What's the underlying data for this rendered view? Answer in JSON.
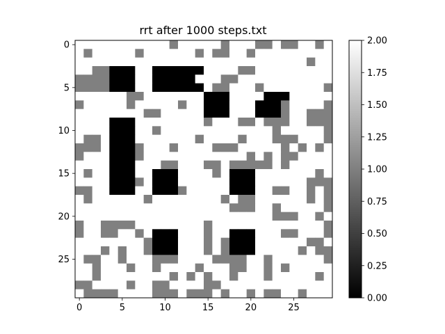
{
  "chart_data": {
    "type": "heatmap",
    "title": "rrt after 1000 steps.txt",
    "xlabel": "",
    "ylabel": "",
    "colormap": "gray",
    "color_range": [
      0,
      2
    ],
    "rows": 30,
    "cols": 30,
    "x_ticks": [
      0,
      5,
      10,
      15,
      20,
      25
    ],
    "y_ticks": [
      0,
      5,
      10,
      15,
      20,
      25
    ],
    "colorbar_ticks": [
      "0.00",
      "0.25",
      "0.50",
      "0.75",
      "1.00",
      "1.25",
      "1.50",
      "1.75",
      "2.00"
    ],
    "grid": false,
    "values": [
      [
        2,
        2,
        2,
        2,
        2,
        2,
        2,
        2,
        2,
        2,
        2,
        1,
        2,
        2,
        2,
        2,
        2,
        1,
        2,
        2,
        2,
        1,
        1,
        2,
        1,
        1,
        2,
        2,
        1,
        2
      ],
      [
        2,
        1,
        2,
        2,
        2,
        2,
        2,
        1,
        2,
        2,
        2,
        2,
        2,
        2,
        1,
        2,
        1,
        1,
        2,
        2,
        1,
        2,
        2,
        2,
        2,
        2,
        2,
        2,
        2,
        2
      ],
      [
        2,
        2,
        2,
        2,
        2,
        2,
        2,
        2,
        2,
        2,
        2,
        2,
        2,
        2,
        2,
        2,
        2,
        2,
        2,
        2,
        2,
        2,
        2,
        2,
        2,
        2,
        2,
        1,
        2,
        2
      ],
      [
        2,
        2,
        1,
        1,
        0,
        0,
        0,
        2,
        2,
        0,
        0,
        0,
        0,
        0,
        0,
        2,
        2,
        2,
        2,
        1,
        1,
        2,
        2,
        2,
        2,
        2,
        2,
        2,
        2,
        2
      ],
      [
        1,
        1,
        1,
        1,
        0,
        0,
        0,
        2,
        2,
        0,
        0,
        0,
        0,
        0,
        2,
        2,
        2,
        1,
        1,
        2,
        2,
        2,
        2,
        2,
        2,
        2,
        2,
        2,
        2,
        2
      ],
      [
        1,
        1,
        1,
        1,
        0,
        0,
        0,
        2,
        2,
        0,
        0,
        0,
        0,
        0,
        0,
        2,
        1,
        1,
        2,
        2,
        2,
        1,
        2,
        2,
        2,
        2,
        2,
        2,
        2,
        1
      ],
      [
        2,
        2,
        2,
        2,
        2,
        2,
        1,
        1,
        2,
        2,
        2,
        2,
        2,
        2,
        2,
        0,
        0,
        0,
        2,
        2,
        2,
        2,
        0,
        0,
        0,
        2,
        2,
        2,
        2,
        2
      ],
      [
        1,
        2,
        2,
        2,
        2,
        2,
        1,
        2,
        2,
        2,
        2,
        2,
        1,
        2,
        2,
        0,
        0,
        0,
        2,
        2,
        2,
        0,
        0,
        0,
        1,
        2,
        2,
        2,
        2,
        1
      ],
      [
        2,
        2,
        2,
        2,
        2,
        2,
        2,
        2,
        1,
        1,
        2,
        2,
        2,
        2,
        2,
        0,
        0,
        0,
        2,
        2,
        2,
        0,
        0,
        0,
        1,
        2,
        2,
        1,
        1,
        1
      ],
      [
        2,
        2,
        2,
        2,
        0,
        0,
        0,
        2,
        2,
        2,
        2,
        2,
        2,
        2,
        2,
        1,
        2,
        2,
        2,
        1,
        1,
        2,
        1,
        1,
        1,
        2,
        2,
        1,
        1,
        1
      ],
      [
        2,
        2,
        2,
        2,
        0,
        0,
        0,
        2,
        2,
        1,
        2,
        2,
        2,
        2,
        2,
        2,
        2,
        2,
        2,
        2,
        2,
        2,
        2,
        1,
        2,
        2,
        2,
        2,
        2,
        1
      ],
      [
        2,
        1,
        1,
        2,
        0,
        0,
        0,
        2,
        2,
        2,
        2,
        2,
        2,
        2,
        1,
        2,
        2,
        2,
        2,
        1,
        2,
        2,
        2,
        1,
        1,
        1,
        2,
        2,
        2,
        1
      ],
      [
        1,
        1,
        1,
        2,
        0,
        0,
        0,
        1,
        2,
        2,
        2,
        1,
        2,
        2,
        2,
        2,
        1,
        1,
        1,
        2,
        2,
        2,
        2,
        2,
        1,
        2,
        1,
        2,
        1,
        2
      ],
      [
        1,
        2,
        2,
        2,
        0,
        0,
        0,
        1,
        2,
        2,
        2,
        2,
        2,
        2,
        2,
        2,
        2,
        2,
        2,
        2,
        1,
        2,
        1,
        2,
        1,
        1,
        2,
        2,
        2,
        2
      ],
      [
        2,
        2,
        2,
        2,
        0,
        0,
        0,
        2,
        2,
        2,
        1,
        1,
        2,
        2,
        2,
        1,
        1,
        2,
        1,
        1,
        1,
        1,
        1,
        2,
        1,
        2,
        2,
        2,
        2,
        2
      ],
      [
        2,
        1,
        2,
        2,
        0,
        0,
        0,
        2,
        2,
        0,
        0,
        0,
        2,
        2,
        2,
        2,
        1,
        2,
        0,
        0,
        0,
        2,
        2,
        2,
        2,
        2,
        2,
        2,
        1,
        2
      ],
      [
        2,
        2,
        2,
        2,
        0,
        0,
        0,
        1,
        2,
        0,
        0,
        0,
        2,
        2,
        2,
        2,
        2,
        2,
        0,
        0,
        0,
        2,
        2,
        2,
        2,
        2,
        2,
        1,
        1,
        1
      ],
      [
        1,
        1,
        2,
        2,
        0,
        0,
        0,
        2,
        2,
        0,
        0,
        0,
        1,
        2,
        2,
        2,
        2,
        2,
        0,
        0,
        0,
        2,
        2,
        1,
        1,
        2,
        2,
        1,
        2,
        1
      ],
      [
        2,
        1,
        2,
        2,
        2,
        2,
        2,
        2,
        1,
        2,
        2,
        2,
        2,
        2,
        2,
        2,
        2,
        1,
        2,
        1,
        1,
        2,
        2,
        2,
        2,
        2,
        2,
        1,
        2,
        1
      ],
      [
        2,
        2,
        2,
        2,
        2,
        2,
        2,
        2,
        2,
        2,
        2,
        2,
        2,
        2,
        2,
        2,
        2,
        2,
        1,
        1,
        1,
        2,
        2,
        1,
        2,
        2,
        2,
        2,
        2,
        1
      ],
      [
        2,
        2,
        2,
        2,
        2,
        2,
        2,
        2,
        2,
        2,
        2,
        2,
        2,
        2,
        2,
        2,
        2,
        2,
        2,
        2,
        2,
        2,
        2,
        1,
        1,
        1,
        2,
        2,
        1,
        2
      ],
      [
        1,
        2,
        2,
        1,
        1,
        1,
        1,
        2,
        2,
        2,
        2,
        2,
        2,
        2,
        2,
        1,
        2,
        2,
        2,
        2,
        2,
        2,
        2,
        2,
        2,
        2,
        2,
        2,
        2,
        1
      ],
      [
        1,
        2,
        2,
        1,
        1,
        2,
        2,
        1,
        2,
        0,
        0,
        0,
        2,
        2,
        2,
        1,
        2,
        2,
        0,
        0,
        0,
        2,
        2,
        2,
        1,
        1,
        2,
        2,
        2,
        1
      ],
      [
        2,
        2,
        2,
        2,
        2,
        2,
        2,
        2,
        1,
        0,
        0,
        0,
        2,
        2,
        2,
        1,
        2,
        1,
        0,
        0,
        0,
        2,
        2,
        2,
        2,
        2,
        2,
        1,
        1,
        2
      ],
      [
        2,
        2,
        2,
        1,
        2,
        1,
        2,
        2,
        1,
        0,
        0,
        0,
        2,
        2,
        2,
        1,
        2,
        1,
        0,
        0,
        0,
        2,
        2,
        2,
        2,
        2,
        1,
        2,
        1,
        1
      ],
      [
        2,
        1,
        1,
        2,
        2,
        1,
        2,
        2,
        2,
        1,
        1,
        1,
        2,
        2,
        2,
        2,
        1,
        1,
        1,
        1,
        2,
        2,
        1,
        2,
        2,
        2,
        2,
        2,
        2,
        1
      ],
      [
        2,
        2,
        1,
        2,
        2,
        2,
        1,
        2,
        2,
        1,
        2,
        2,
        2,
        2,
        1,
        2,
        2,
        2,
        1,
        1,
        2,
        2,
        1,
        2,
        1,
        2,
        2,
        2,
        2,
        2
      ],
      [
        2,
        2,
        1,
        2,
        2,
        2,
        2,
        2,
        2,
        2,
        2,
        1,
        2,
        1,
        2,
        1,
        2,
        2,
        1,
        2,
        2,
        2,
        1,
        2,
        2,
        2,
        2,
        2,
        1,
        2
      ],
      [
        1,
        1,
        2,
        2,
        2,
        2,
        1,
        2,
        2,
        1,
        1,
        2,
        2,
        2,
        2,
        1,
        1,
        2,
        2,
        2,
        2,
        2,
        2,
        2,
        2,
        2,
        2,
        2,
        2,
        2
      ],
      [
        2,
        1,
        1,
        1,
        1,
        2,
        2,
        2,
        2,
        1,
        1,
        1,
        2,
        1,
        1,
        1,
        2,
        1,
        2,
        2,
        1,
        2,
        1,
        1,
        2,
        2,
        1,
        2,
        2,
        2
      ]
    ]
  }
}
